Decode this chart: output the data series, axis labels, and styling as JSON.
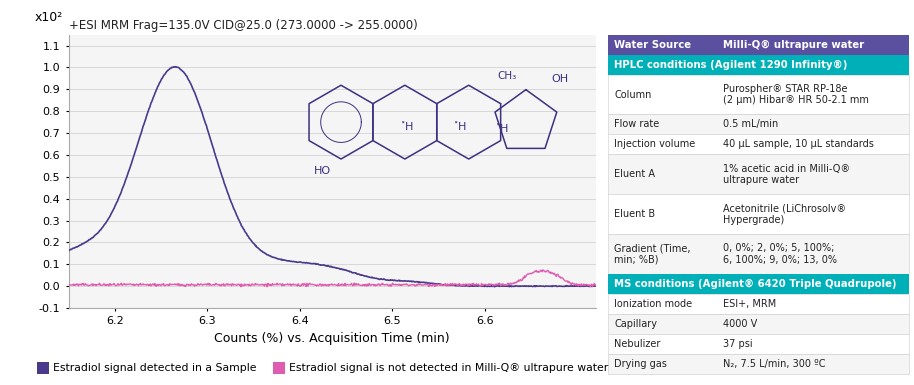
{
  "title": "+ESI MRM Frag=135.0V CID@25.0 (273.0000 -> 255.0000)",
  "xlabel": "Counts (%) vs. Acquisition Time (min)",
  "ylabel": "x10²",
  "xlim": [
    6.15,
    6.72
  ],
  "ylim": [
    -0.1,
    1.15
  ],
  "yticks": [
    -0.1,
    0.0,
    0.1,
    0.2,
    0.3,
    0.4,
    0.5,
    0.6,
    0.7,
    0.8,
    0.9,
    1.0,
    1.1
  ],
  "xticks": [
    6.2,
    6.3,
    6.4,
    6.5,
    6.6
  ],
  "line1_color": "#4b3a8c",
  "line2_color": "#e05cb0",
  "bg_color": "#ffffff",
  "plot_bg_color": "#f5f5f5",
  "legend1": "Estradiol signal detected in a Sample",
  "legend2": "Estradiol signal is not detected in Milli-Q® ultrapure water",
  "table_header1_bg": "#5b4fa0",
  "table_header2_bg": "#00b0b9",
  "table_header1_label": "Water Source",
  "table_header1_value": "Milli-Q® ultrapure water",
  "table_section2_label": "HPLC conditions (Agilent 1290 Infinity®)",
  "table_section3_label": "MS conditions (Agilent® 6420 Triple Quadrupole)",
  "table_rows": [
    [
      "Column",
      "Purospher® STAR RP-18e\n(2 μm) Hibar® HR 50-2.1 mm"
    ],
    [
      "Flow rate",
      "0.5 mL/min"
    ],
    [
      "Injection volume",
      "40 μL sample, 10 μL standards"
    ],
    [
      "Eluent A",
      "1% acetic acid in Milli-Q®\nultrapure water"
    ],
    [
      "Eluent B",
      "Acetonitrile (LiChrosolv®\nHypergrade)"
    ],
    [
      "Gradient (Time,\nmin; %B)",
      "0, 0%; 2, 0%; 5, 100%;\n6, 100%; 9, 0%; 13, 0%"
    ]
  ],
  "table_rows2": [
    [
      "Ionization mode",
      "ESI+, MRM"
    ],
    [
      "Capillary",
      "4000 V"
    ],
    [
      "Nebulizer",
      "37 psi"
    ],
    [
      "Drying gas",
      "N₂, 7.5 L/min, 300 ºC"
    ]
  ],
  "mol_color": "#3d3080"
}
